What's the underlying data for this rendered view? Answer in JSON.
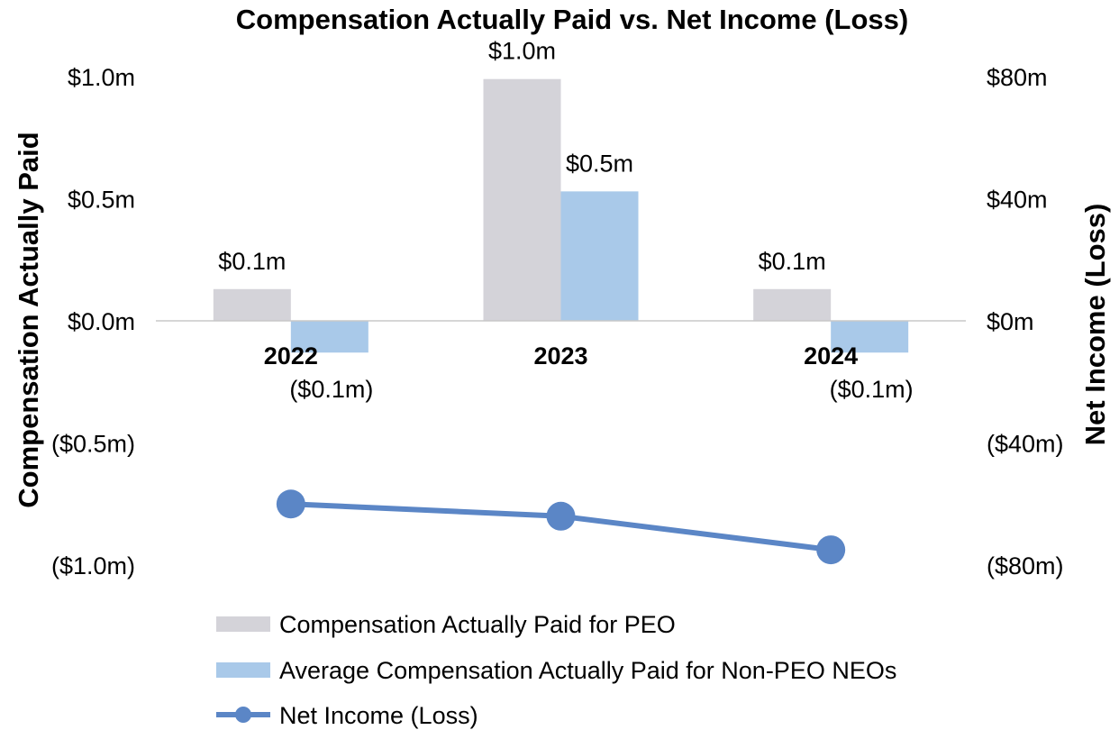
{
  "chart_data": {
    "type": "bar",
    "title": "Compensation Actually Paid vs. Net Income (Loss)",
    "ylabel": "Compensation Actually Paid",
    "y2label": "Net Income (Loss)",
    "categories": [
      "2022",
      "2023",
      "2024"
    ],
    "ylim": [
      -1.0,
      1.0
    ],
    "y2lim": [
      -80,
      80
    ],
    "y_ticks": [
      {
        "value": 1.0,
        "label": "$1.0m"
      },
      {
        "value": 0.5,
        "label": "$0.5m"
      },
      {
        "value": 0.0,
        "label": "$0.0m"
      },
      {
        "value": -0.5,
        "label": "($0.5m)"
      },
      {
        "value": -1.0,
        "label": "($1.0m)"
      }
    ],
    "y2_ticks": [
      {
        "value": 80,
        "label": "$80m"
      },
      {
        "value": 40,
        "label": "$40m"
      },
      {
        "value": 0,
        "label": "$0m"
      },
      {
        "value": -40,
        "label": "($40m)"
      },
      {
        "value": -80,
        "label": "($80m)"
      }
    ],
    "series": [
      {
        "name": "Compensation Actually Paid for PEO",
        "kind": "bar",
        "axis": "left",
        "color": "#d4d3d9",
        "values": [
          0.13,
          0.99,
          0.13
        ],
        "labels": [
          "$0.1m",
          "$1.0m",
          "$0.1m"
        ]
      },
      {
        "name": "Average Compensation Actually Paid for Non-PEO NEOs",
        "kind": "bar",
        "axis": "left",
        "color": "#a9c9e9",
        "values": [
          -0.13,
          0.53,
          -0.13
        ],
        "labels": [
          "($0.1m)",
          "$0.5m",
          "($0.1m)"
        ]
      },
      {
        "name": "Net Income (Loss)",
        "kind": "line",
        "axis": "right",
        "color": "#5b86c6",
        "values": [
          -60,
          -64,
          -75
        ]
      }
    ],
    "legend_position": "bottom",
    "grid": false
  }
}
